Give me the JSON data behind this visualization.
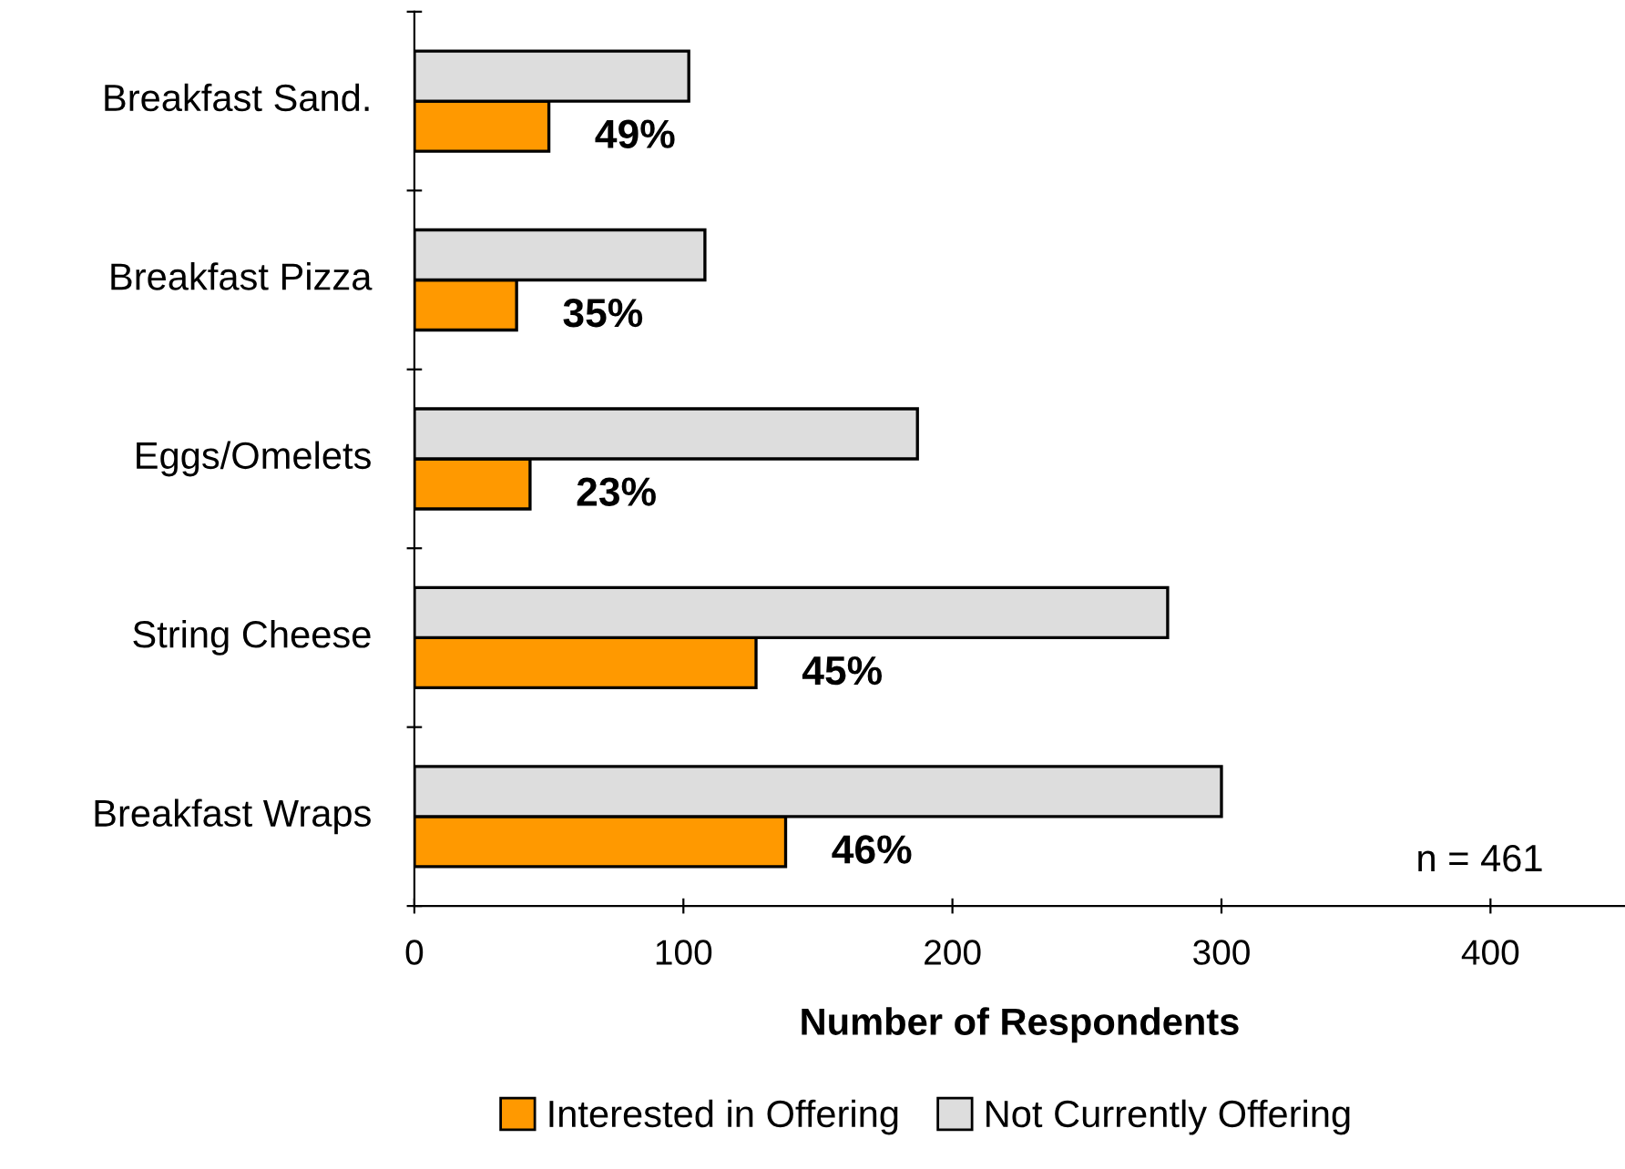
{
  "chart_data": {
    "type": "bar",
    "orientation": "horizontal",
    "xlabel": "Number of Respondents",
    "categories": [
      "Breakfast Sand.",
      "Breakfast Pizza",
      "Eggs/Omelets",
      "String Cheese",
      "Breakfast Wraps"
    ],
    "series": [
      {
        "name": "Interested in Offering",
        "color": "#ff9900",
        "values": [
          50,
          38,
          43,
          127,
          138
        ]
      },
      {
        "name": "Not Currently Offering",
        "color": "#dddddd",
        "values": [
          102,
          108,
          187,
          280,
          300
        ]
      }
    ],
    "xlim": [
      0,
      450
    ],
    "xticks": [
      0,
      100,
      200,
      300,
      400
    ],
    "grid": false,
    "legend": "bottom",
    "annotations": [
      {
        "text": "49%",
        "x": 50,
        "y": "Breakfast Sand."
      },
      {
        "text": "35%",
        "x": 38,
        "y": "Breakfast Pizza"
      },
      {
        "text": "23%",
        "x": 43,
        "y": "Eggs/Omelets"
      },
      {
        "text": "45%",
        "x": 127,
        "y": "String Cheese"
      },
      {
        "text": "46%",
        "x": 138,
        "y": "Breakfast Wraps"
      },
      "n = 461"
    ]
  }
}
